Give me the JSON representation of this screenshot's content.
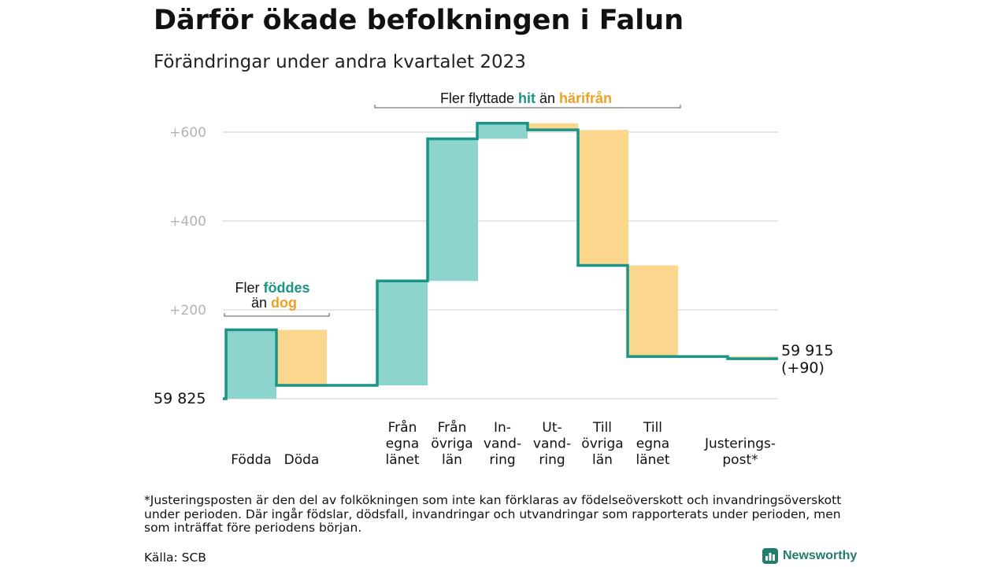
{
  "header": {
    "title": "Därför ökade befolkningen i Falun",
    "subtitle": "Förändringar under andra kvartalet 2023"
  },
  "chart_data": {
    "type": "waterfall",
    "start": {
      "label": "59 825",
      "value": 59825
    },
    "end": {
      "label_line1": "59 915",
      "label_line2": "(+90)",
      "value": 59915
    },
    "y_ticks": [
      "+200",
      "+400",
      "+600"
    ],
    "ylim": [
      0,
      620
    ],
    "steps": [
      {
        "label_lines": [
          "Födda"
        ],
        "delta": 155,
        "group": "births"
      },
      {
        "label_lines": [
          "Döda"
        ],
        "delta": -125,
        "group": "births"
      },
      {
        "label_lines": [
          "Från",
          "egna",
          "länet"
        ],
        "delta": 235,
        "group": "migration"
      },
      {
        "label_lines": [
          "Från",
          "övriga",
          "län"
        ],
        "delta": 320,
        "group": "migration"
      },
      {
        "label_lines": [
          "In-",
          "vand-",
          "ring"
        ],
        "delta": 35,
        "group": "migration"
      },
      {
        "label_lines": [
          "Ut-",
          "vand-",
          "ring"
        ],
        "delta": -15,
        "group": "migration"
      },
      {
        "label_lines": [
          "Till",
          "övriga",
          "län"
        ],
        "delta": -305,
        "group": "migration"
      },
      {
        "label_lines": [
          "Till",
          "egna",
          "länet"
        ],
        "delta": -205,
        "group": "migration"
      },
      {
        "label_lines": [
          "Justerings-",
          "post*"
        ],
        "delta": -5,
        "group": "adjustment"
      }
    ],
    "annotations": {
      "births": {
        "line1_prefix": "Fler ",
        "line1_hl": "föddes",
        "line2_prefix": "än ",
        "line2_hl": "dog"
      },
      "migration": {
        "prefix": "Fler flyttade ",
        "hl1": "hit",
        "middle": " än ",
        "hl2": "härifrån"
      }
    },
    "colors": {
      "positive": "#8dd5cc",
      "negative": "#fbd78e",
      "line": "#1a9585",
      "teal_text": "#1a9585",
      "orange_text": "#f0a020",
      "grid": "#dddddd",
      "bracket": "#555555"
    },
    "grid": true
  },
  "footer": {
    "footnote": "*Justeringsposten är den del av folkökningen som inte kan förklaras av födelseöverskott och invandringsöverskott under perioden. Där ingår födslar, dödsfall, invandringar och utvandringar som rapporterats under perioden, men som inträffat före periodens början.",
    "source": "Källa: SCB",
    "brand": "Newsworthy"
  }
}
